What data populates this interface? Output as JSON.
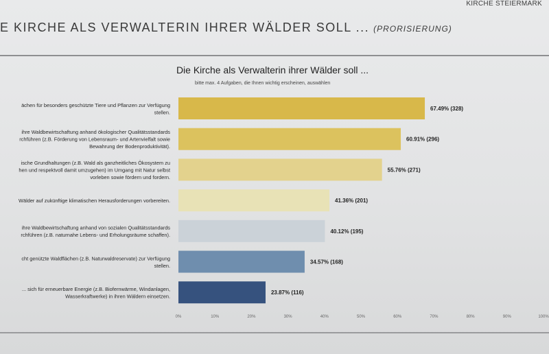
{
  "header": {
    "brand": "KIRCHE STEIERMARK",
    "heading": "E KIRCHE ALS VERWALTERIN IHRER WÄLDER SOLL ...",
    "heading_sub": "(PRORISIERUNG)"
  },
  "chart_data": {
    "type": "bar",
    "orientation": "horizontal",
    "title": "Die Kirche als Verwalterin ihrer Wälder soll ...",
    "subtitle": "bitte max. 4 Aufgaben, die Ihnen wichtig erscheinen, auswählen",
    "xlim": [
      0,
      100
    ],
    "x_ticks": [
      "0%",
      "10%",
      "20%",
      "30%",
      "40%",
      "50%",
      "60%",
      "70%",
      "80%",
      "90%",
      "100%"
    ],
    "categories": [
      [
        "ächen für besonders geschützte Tiere und Pflanzen zur Verfügung",
        "stellen."
      ],
      [
        "ihre Waldbewirtschaftung anhand ökologischer Qualitätsstandards",
        "rchführen (z.B. Förderung von Lebensraum- und Artenvielfalt sowie",
        "Bewahrung der Bodenproduktivität)."
      ],
      [
        "ische Grundhaltungen (z.B. Wald als ganzheitliches Ökosystem zu",
        "hen und respektvoll damit umzugehen) im Umgang mit Natur selbst",
        "vorleben sowie fördern und fordern."
      ],
      [
        "Wälder auf zukünftige klimatischen Herausforderungen vorbereiten."
      ],
      [
        "ihre Waldbewirtschaftung anhand von sozialen Qualitätsstandards",
        "rchführen (z.B. naturnahe Lebens- und Erholungsräume schaffen)."
      ],
      [
        "cht genützte Waldflächen (z.B. Naturwaldreservate) zur Verfügung",
        "stellen."
      ],
      [
        "... sich für erneuerbare Energie (z.B. Biofernwärme, Windanlagen,",
        "Wasserkraftwerke) in ihren Wäldern einsetzen."
      ]
    ],
    "values": [
      67.49,
      60.91,
      55.76,
      41.36,
      40.12,
      34.57,
      23.87
    ],
    "counts": [
      328,
      296,
      271,
      201,
      195,
      168,
      116
    ],
    "value_labels": [
      "67.49% (328)",
      "60.91% (296)",
      "55.76% (271)",
      "41.36% (201)",
      "40.12% (195)",
      "34.57% (168)",
      "23.87% (116)"
    ],
    "colors": [
      "#d8b84a",
      "#dcc25e",
      "#e3d28d",
      "#e8e2b6",
      "#cbd2d8",
      "#6f8eae",
      "#36527e"
    ],
    "grid": false,
    "legend": "none"
  }
}
